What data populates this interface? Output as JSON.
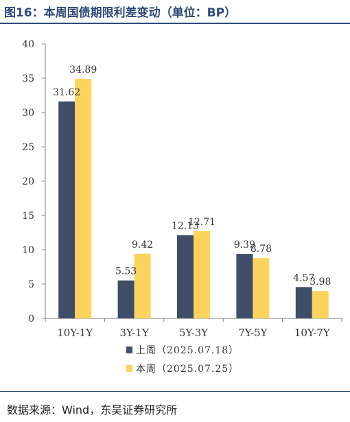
{
  "header": {
    "title": "图16：本周国债期限利差变动（单位：BP）"
  },
  "footer": {
    "source": "数据来源：Wind，东吴证券研究所"
  },
  "chart_data": {
    "type": "bar",
    "categories": [
      "10Y-1Y",
      "3Y-1Y",
      "5Y-3Y",
      "7Y-5Y",
      "10Y-7Y"
    ],
    "series": [
      {
        "name": "上周（2025.07.18）",
        "values": [
          31.62,
          5.53,
          12.13,
          9.39,
          4.57
        ],
        "color": "#3f4e68"
      },
      {
        "name": "本周（2025.07.25）",
        "values": [
          34.89,
          9.42,
          12.71,
          8.78,
          3.98
        ],
        "color": "#fcd35c"
      }
    ],
    "value_labels": [
      [
        "31.62",
        "5.53",
        "12.13",
        "9.39",
        "4.57"
      ],
      [
        "34.89",
        "9.42",
        "12.71",
        "8.78",
        "3.98"
      ]
    ],
    "ylim": [
      0,
      40
    ],
    "yticks": [
      0,
      5,
      10,
      15,
      20,
      25,
      30,
      35,
      40
    ],
    "grid": false,
    "legend_position": "bottom"
  }
}
